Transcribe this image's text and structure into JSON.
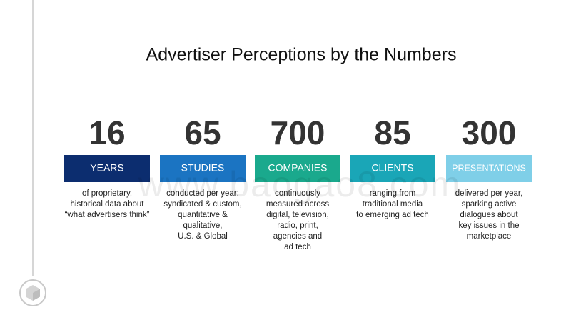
{
  "title": "Advertiser Perceptions by the Numbers",
  "items": [
    {
      "number": 16,
      "label": "YEARS",
      "color": "#0c2d6f",
      "description": [
        "of proprietary,",
        "historical data about",
        "“what advertisers think”"
      ]
    },
    {
      "number": 65,
      "label": "STUDIES",
      "color": "#1b74c2",
      "description": [
        "conducted per year:",
        "syndicated & custom,",
        "quantitative &",
        "qualitative,",
        "U.S. & Global"
      ]
    },
    {
      "number": 700,
      "label": "COMPANIES",
      "color": "#1aa98d",
      "description": [
        "continuously",
        "measured across",
        "digital, television,",
        "radio, print,",
        "agencies and",
        "ad tech"
      ]
    },
    {
      "number": 85,
      "label": "CLIENTS",
      "color": "#1aa6b7",
      "description": [
        "ranging from",
        "traditional media",
        "to emerging ad tech"
      ]
    },
    {
      "number": 300,
      "label": "PRESENTATIONS",
      "color": "#7fcfe8",
      "description": [
        "delivered per year,",
        "sparking active",
        "dialogues about",
        "key issues in the",
        "marketplace"
      ]
    }
  ],
  "watermark": "www.baogao8.com"
}
